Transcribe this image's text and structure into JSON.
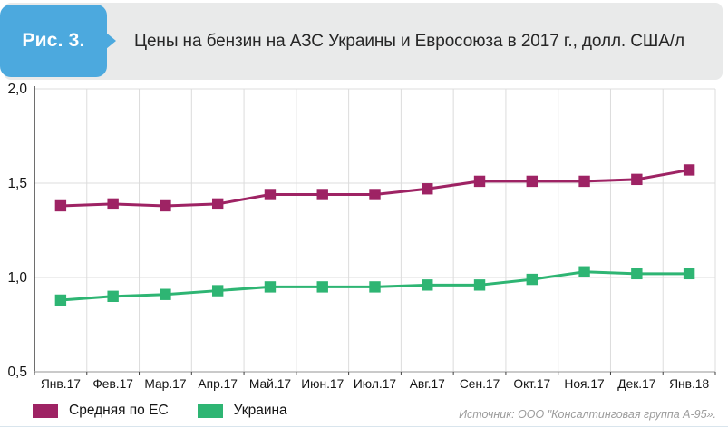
{
  "header": {
    "badge": "Рис. 3.",
    "title": "Цены на бензин на АЗС Украины и Евросоюза в 2017 г., долл. США/л"
  },
  "chart_data": {
    "type": "line",
    "title": "Цены на бензин на АЗС Украины и Евросоюза в 2017 г., долл. США/л",
    "x": [
      "Янв.17",
      "Фев.17",
      "Мар.17",
      "Апр.17",
      "Май.17",
      "Июн.17",
      "Июл.17",
      "Авг.17",
      "Сен.17",
      "Окт.17",
      "Ноя.17",
      "Дек.17",
      "Янв.18"
    ],
    "series": [
      {
        "name": "Средняя по ЕС",
        "color": "#9e2364",
        "values": [
          1.38,
          1.39,
          1.38,
          1.39,
          1.44,
          1.44,
          1.44,
          1.47,
          1.51,
          1.51,
          1.51,
          1.52,
          1.57
        ]
      },
      {
        "name": "Украина",
        "color": "#2eb573",
        "values": [
          0.88,
          0.9,
          0.91,
          0.93,
          0.95,
          0.95,
          0.95,
          0.96,
          0.96,
          0.99,
          1.03,
          1.02,
          1.02
        ]
      }
    ],
    "ylim": [
      0.5,
      2.0
    ],
    "yticks": [
      2.0,
      1.5,
      1.0,
      0.5
    ],
    "ytick_labels": [
      "2,0",
      "1,5",
      "1,0",
      "0,5"
    ],
    "marker": "square",
    "grid": true,
    "legend_position": "bottom",
    "colors": {
      "grid": "#dcdcdc",
      "axis_left": "#3f3f3f",
      "axis_bottom": "#ababab",
      "tick_text": "#141414"
    }
  },
  "footer": {
    "source": "Источник: ООО \"Консалтинговая группа А-95»."
  }
}
